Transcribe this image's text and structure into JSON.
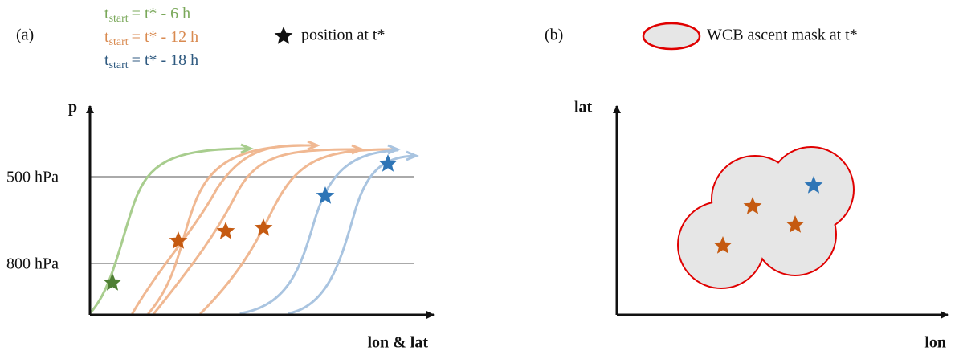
{
  "panel_a": {
    "label": "(a)",
    "legend": [
      {
        "base": "t",
        "sub": "start",
        "rest": "= t* - 6 h"
      },
      {
        "base": "t",
        "sub": "start",
        "rest": "= t* - 12 h"
      },
      {
        "base": "t",
        "sub": "start",
        "rest": "= t* - 18 h"
      }
    ],
    "star_legend": "position at t*",
    "y_axis_label": "p",
    "levels": [
      "500 hPa",
      "800 hPa"
    ],
    "x_axis_label": "lon & lat"
  },
  "panel_b": {
    "label": "(b)",
    "mask_legend": "WCB ascent mask at t*",
    "y_axis_label": "lat",
    "x_axis_label": "lon"
  }
}
